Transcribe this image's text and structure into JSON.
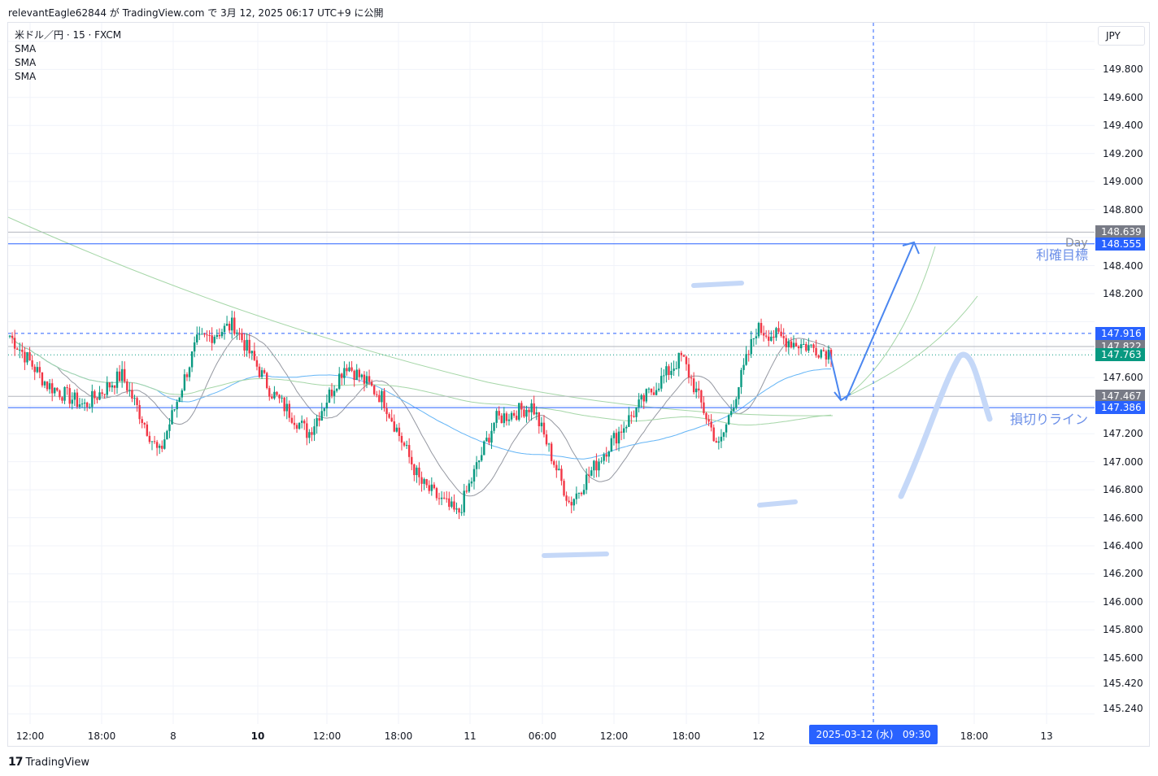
{
  "header": {
    "text": "relevantEagle62844 が TradingView.com で 3月 12, 2025 06:17 UTC+9 に公開"
  },
  "legend": {
    "symbol": "米ドル／円 · 15 · FXCM",
    "indicators": [
      "SMA",
      "SMA",
      "SMA"
    ]
  },
  "currency_button": "JPY",
  "y_axis_labels": [
    "149.800",
    "149.600",
    "149.400",
    "149.200",
    "149.000",
    "148.800",
    "148.400",
    "148.200",
    "147.600",
    "147.200",
    "147.000",
    "146.800",
    "146.600",
    "146.400",
    "146.200",
    "146.000",
    "145.800",
    "145.600",
    "145.420",
    "145.240"
  ],
  "price_badges": [
    {
      "value": "148.639",
      "color": "#787b86"
    },
    {
      "value": "148.555",
      "color": "#2962ff"
    },
    {
      "value": "147.916",
      "color": "#2962ff"
    },
    {
      "value": "147.822",
      "color": "#787b86"
    },
    {
      "value": "147.763",
      "color": "#089981"
    },
    {
      "value": "147.467",
      "color": "#787b86"
    },
    {
      "value": "147.386",
      "color": "#2962ff"
    }
  ],
  "x_axis_labels": [
    {
      "text": "12:00",
      "bold": false
    },
    {
      "text": "18:00",
      "bold": false
    },
    {
      "text": "8",
      "bold": false
    },
    {
      "text": "10",
      "bold": true
    },
    {
      "text": "12:00",
      "bold": false
    },
    {
      "text": "18:00",
      "bold": false
    },
    {
      "text": "11",
      "bold": false
    },
    {
      "text": "06:00",
      "bold": false
    },
    {
      "text": "12:00",
      "bold": false
    },
    {
      "text": "18:00",
      "bold": false
    },
    {
      "text": "12",
      "bold": false
    },
    {
      "text": "18:00",
      "bold": false
    },
    {
      "text": "13",
      "bold": false
    }
  ],
  "crosshair_label": "2025-03-12 (水)   09:30",
  "annotations": {
    "take_profit": "利確目標",
    "stop_loss": "損切りライン",
    "day": "Day"
  },
  "colors": {
    "up": "#089981",
    "down": "#f23645",
    "line_blue": "#2962ff",
    "drawing_blue": "#4a86f0"
  },
  "footer": {
    "brand": "TradingView"
  },
  "chart_data": {
    "type": "candlestick",
    "symbol": "米ドル／円 · 15 · FXCM",
    "ylim": [
      145.15,
      150.05
    ],
    "x": [
      "12:00",
      "18:00",
      "8",
      "10",
      "12:00",
      "18:00",
      "11",
      "06:00",
      "12:00",
      "18:00",
      "12",
      "18:00",
      "13"
    ],
    "key_close_path": [
      147.9,
      147.55,
      147.4,
      147.62,
      147.05,
      147.85,
      147.98,
      147.5,
      147.2,
      147.7,
      147.45,
      146.85,
      146.62,
      147.3,
      147.4,
      146.7,
      147.1,
      147.45,
      147.75,
      147.1,
      147.95,
      147.85,
      147.78
    ],
    "horizontal_levels": [
      148.639,
      148.555,
      147.916,
      147.822,
      147.763,
      147.467,
      147.386
    ],
    "last_price": 147.763
  }
}
